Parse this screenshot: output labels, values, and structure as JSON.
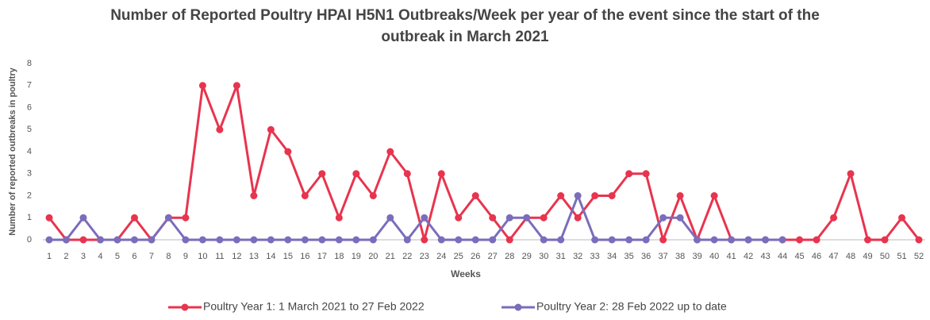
{
  "chart_data": {
    "type": "line",
    "title": "Number of Reported Poultry HPAI H5N1 Outbreaks/Week per year of the event since the start of the outbreak in March 2021",
    "x_label": "Weeks",
    "y_label": "Number of reported outbreaks in poultry",
    "categories": [
      1,
      2,
      3,
      4,
      5,
      6,
      7,
      8,
      9,
      10,
      11,
      12,
      13,
      14,
      15,
      16,
      17,
      18,
      19,
      20,
      21,
      22,
      23,
      24,
      25,
      26,
      27,
      28,
      29,
      30,
      31,
      32,
      33,
      34,
      35,
      36,
      37,
      38,
      39,
      40,
      41,
      42,
      43,
      44,
      45,
      46,
      47,
      48,
      49,
      50,
      51,
      52
    ],
    "series": [
      {
        "name": "Poultry Year 1: 1 March 2021 to 27 Feb 2022",
        "color": "#e8344e",
        "values": [
          1,
          0,
          0,
          0,
          0,
          1,
          0,
          1,
          1,
          7,
          5,
          7,
          2,
          5,
          4,
          2,
          3,
          1,
          3,
          2,
          4,
          3,
          0,
          3,
          1,
          2,
          1,
          0,
          1,
          1,
          2,
          1,
          2,
          2,
          3,
          3,
          0,
          2,
          0,
          2,
          0,
          0,
          0,
          0,
          0,
          0,
          1,
          3,
          0,
          0,
          1,
          0
        ]
      },
      {
        "name": "Poultry Year 2: 28 Feb 2022 up to date",
        "color": "#7a6dbb",
        "values": [
          0,
          0,
          1,
          0,
          0,
          0,
          0,
          1,
          0,
          0,
          0,
          0,
          0,
          0,
          0,
          0,
          0,
          0,
          0,
          0,
          1,
          0,
          1,
          0,
          0,
          0,
          0,
          1,
          1,
          0,
          0,
          2,
          0,
          0,
          0,
          0,
          1,
          1,
          0,
          0,
          0,
          0,
          0,
          0,
          null,
          null,
          null,
          null,
          null,
          null,
          null,
          null
        ]
      }
    ],
    "ylim": [
      0,
      8
    ],
    "yticks": [
      0,
      1,
      2,
      3,
      4,
      5,
      6,
      7,
      8
    ],
    "grid": false,
    "legend": "bottom"
  }
}
